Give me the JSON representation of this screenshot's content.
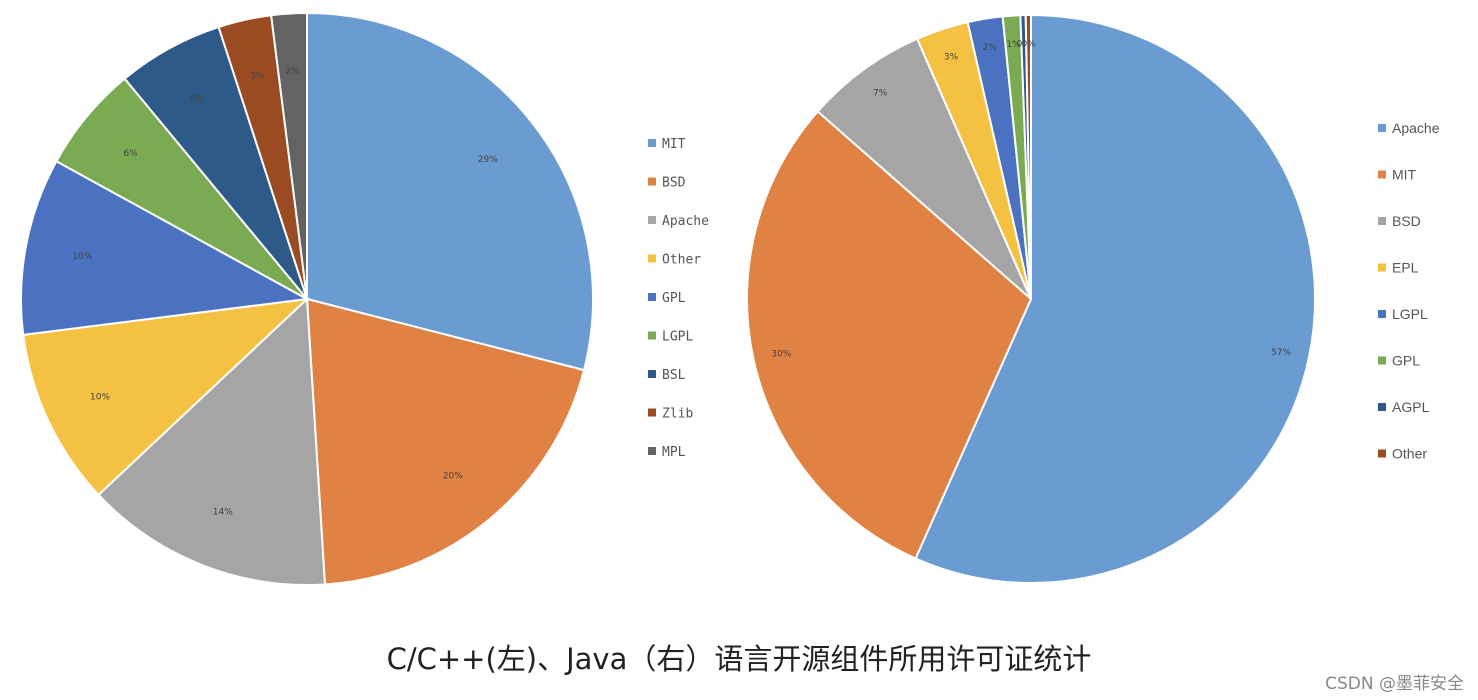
{
  "caption": "C/C++(左)、Java（右）语言开源组件所用许可证统计",
  "watermark": "CSDN @墨菲安全",
  "chart_data": [
    {
      "type": "pie",
      "title": "",
      "start_angle_deg": 0,
      "legend_position": "right",
      "slices": [
        {
          "label": "MIT",
          "value": 29,
          "display": "29%",
          "color": "#6a9bd1"
        },
        {
          "label": "BSD",
          "value": 20,
          "display": "20%",
          "color": "#e08244"
        },
        {
          "label": "Apache",
          "value": 14,
          "display": "14%",
          "color": "#a5a5a5"
        },
        {
          "label": "Other",
          "value": 10,
          "display": "10%",
          "color": "#f5c142"
        },
        {
          "label": "GPL",
          "value": 10,
          "display": "10%",
          "color": "#4a72c0"
        },
        {
          "label": "LGPL",
          "value": 6,
          "display": "6%",
          "color": "#7aab52"
        },
        {
          "label": "BSL",
          "value": 6,
          "display": "6%",
          "color": "#2e5a8a"
        },
        {
          "label": "Zlib",
          "value": 3,
          "display": "3%",
          "color": "#9a4b22"
        },
        {
          "label": "MPL",
          "value": 2,
          "display": "2%",
          "color": "#636363"
        }
      ]
    },
    {
      "type": "pie",
      "title": "",
      "start_angle_deg": 0,
      "legend_position": "right",
      "slices": [
        {
          "label": "Apache",
          "value": 57,
          "display": "57%",
          "color": "#6a9bd1"
        },
        {
          "label": "MIT",
          "value": 30,
          "display": "30%",
          "color": "#e08244"
        },
        {
          "label": "BSD",
          "value": 7,
          "display": "7%",
          "color": "#a5a5a5"
        },
        {
          "label": "EPL",
          "value": 3,
          "display": "3%",
          "color": "#f5c142"
        },
        {
          "label": "LGPL",
          "value": 2,
          "display": "2%",
          "color": "#4a72c0"
        },
        {
          "label": "GPL",
          "value": 1,
          "display": "1%",
          "color": "#7aab52"
        },
        {
          "label": "AGPL",
          "value": 0.3,
          "display": "0%",
          "color": "#2e5a8a"
        },
        {
          "label": "Other",
          "value": 0.3,
          "display": "0%",
          "color": "#9a4b22"
        }
      ]
    }
  ]
}
